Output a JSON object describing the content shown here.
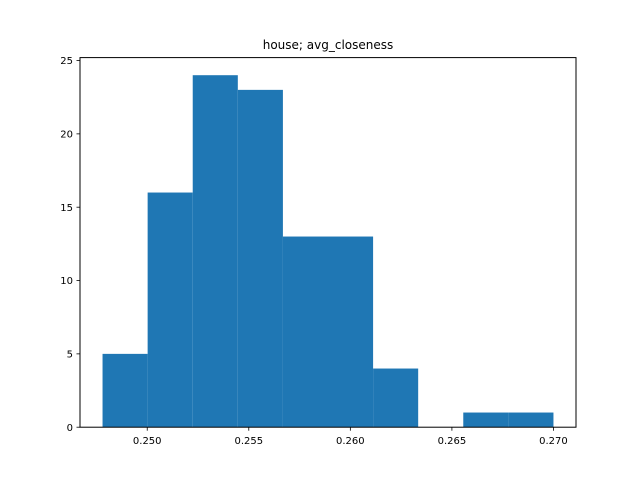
{
  "chart_data": {
    "type": "histogram",
    "title": "house; avg_closeness",
    "xlabel": "",
    "ylabel": "",
    "bin_edges": [
      0.2478,
      0.25002,
      0.25224,
      0.25446,
      0.25668,
      0.2589,
      0.26112,
      0.26334,
      0.26556,
      0.26778,
      0.27
    ],
    "counts": [
      5,
      16,
      24,
      23,
      13,
      13,
      4,
      0,
      1,
      1
    ],
    "xlim": [
      0.24669,
      0.27111
    ],
    "ylim": [
      0,
      25.2
    ],
    "xticks": [
      0.25,
      0.255,
      0.26,
      0.265,
      0.27
    ],
    "xtick_labels": [
      "0.250",
      "0.255",
      "0.260",
      "0.265",
      "0.270"
    ],
    "yticks": [
      0,
      5,
      10,
      15,
      20,
      25
    ],
    "ytick_labels": [
      "0",
      "5",
      "10",
      "15",
      "20",
      "25"
    ],
    "bar_color": "#1f77b4",
    "grid": false,
    "legend": "none"
  }
}
